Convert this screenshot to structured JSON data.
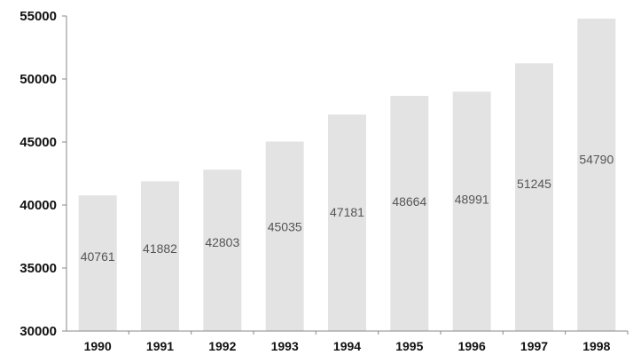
{
  "chart_data": {
    "type": "bar",
    "categories": [
      "1990",
      "1991",
      "1992",
      "1993",
      "1994",
      "1995",
      "1996",
      "1997",
      "1998"
    ],
    "values": [
      40761,
      41882,
      42803,
      45035,
      47181,
      48664,
      48991,
      51245,
      54790
    ],
    "data_labels": [
      "40761",
      "41882",
      "42803",
      "45035",
      "47181",
      "48664",
      "48991",
      "51245",
      "54790"
    ],
    "ylim": [
      30000,
      55000
    ],
    "yticks": [
      "30000",
      "35000",
      "40000",
      "45000",
      "50000",
      "55000"
    ],
    "grid": false,
    "legend": "none",
    "colors": {
      "bar": "#e3e3e3",
      "axis": "#888888",
      "tick_text": "#111111",
      "data_label_text": "#555555"
    }
  }
}
